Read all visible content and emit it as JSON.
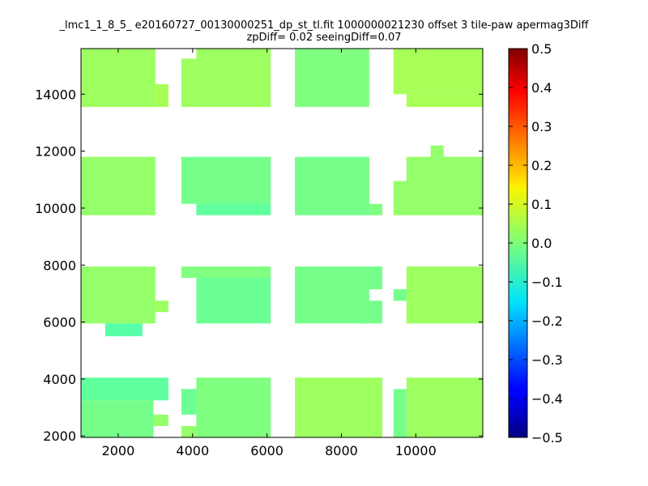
{
  "chart_data": {
    "type": "heatmap",
    "title": "_lmc1_1_8_5_ e20160727_00130000251_dp_st_tl.fit 1000000021230 offset 3 tile-paw apermag3Diff",
    "subtitle": "zpDiff= 0.02 seeingDiff=0.07",
    "xlabel": "",
    "ylabel": "",
    "xlim": [
      1000,
      11800
    ],
    "ylim": [
      1950,
      15600
    ],
    "xticks": [
      2000,
      4000,
      6000,
      8000,
      10000
    ],
    "yticks": [
      2000,
      4000,
      6000,
      8000,
      10000,
      12000,
      14000
    ],
    "grid": false,
    "colormap": "jet",
    "colorbar": {
      "vmin": -0.5,
      "vmax": 0.5,
      "ticks": [
        "0.5",
        "0.4",
        "0.3",
        "0.2",
        "0.1",
        "0.0",
        "−0.1",
        "−0.2",
        "−0.3",
        "−0.4",
        "−0.5"
      ]
    },
    "patches": [
      {
        "x": [
          1000,
          3000
        ],
        "y": [
          13550,
          15600
        ],
        "value": 0.03
      },
      {
        "x": [
          3000,
          3350
        ],
        "y": [
          13550,
          14350
        ],
        "value": 0.04
      },
      {
        "x": [
          3700,
          6100
        ],
        "y": [
          13550,
          15250
        ],
        "value": 0.03
      },
      {
        "x": [
          4100,
          6100
        ],
        "y": [
          15250,
          15600
        ],
        "value": 0.03
      },
      {
        "x": [
          6750,
          8750
        ],
        "y": [
          13550,
          15600
        ],
        "value": 0.0
      },
      {
        "x": [
          9400,
          11800
        ],
        "y": [
          14000,
          15600
        ],
        "value": 0.04
      },
      {
        "x": [
          9750,
          11800
        ],
        "y": [
          13550,
          14000
        ],
        "value": 0.04
      },
      {
        "x": [
          1000,
          3000
        ],
        "y": [
          9750,
          11800
        ],
        "value": 0.02
      },
      {
        "x": [
          3700,
          6100
        ],
        "y": [
          10150,
          11800
        ],
        "value": -0.01
      },
      {
        "x": [
          4100,
          6100
        ],
        "y": [
          9750,
          10150
        ],
        "value": -0.03
      },
      {
        "x": [
          6750,
          8750
        ],
        "y": [
          9750,
          11800
        ],
        "value": -0.01
      },
      {
        "x": [
          8750,
          9100
        ],
        "y": [
          9750,
          10150
        ],
        "value": 0.0
      },
      {
        "x": [
          9400,
          11800
        ],
        "y": [
          9750,
          10950
        ],
        "value": 0.02
      },
      {
        "x": [
          9750,
          11800
        ],
        "y": [
          10950,
          11800
        ],
        "value": 0.02
      },
      {
        "x": [
          10400,
          10750
        ],
        "y": [
          11800,
          12200
        ],
        "value": 0.02
      },
      {
        "x": [
          1000,
          3000
        ],
        "y": [
          5950,
          7950
        ],
        "value": 0.02
      },
      {
        "x": [
          3000,
          3350
        ],
        "y": [
          6350,
          6750
        ],
        "value": 0.03
      },
      {
        "x": [
          1650,
          2650
        ],
        "y": [
          5500,
          5950
        ],
        "value": -0.04
      },
      {
        "x": [
          3700,
          6100
        ],
        "y": [
          7550,
          7950
        ],
        "value": 0.0
      },
      {
        "x": [
          4100,
          6100
        ],
        "y": [
          5950,
          7550
        ],
        "value": -0.02
      },
      {
        "x": [
          6750,
          8750
        ],
        "y": [
          5950,
          7950
        ],
        "value": -0.01
      },
      {
        "x": [
          8750,
          9100
        ],
        "y": [
          7150,
          7950
        ],
        "value": -0.01
      },
      {
        "x": [
          8450,
          9100
        ],
        "y": [
          5950,
          6750
        ],
        "value": -0.01
      },
      {
        "x": [
          9750,
          11800
        ],
        "y": [
          5950,
          7950
        ],
        "value": 0.03
      },
      {
        "x": [
          9400,
          9750
        ],
        "y": [
          6750,
          7150
        ],
        "value": -0.01
      },
      {
        "x": [
          1000,
          3350
        ],
        "y": [
          3250,
          4050
        ],
        "value": -0.03
      },
      {
        "x": [
          1000,
          2950
        ],
        "y": [
          1950,
          3250
        ],
        "value": -0.01
      },
      {
        "x": [
          2950,
          3350
        ],
        "y": [
          2350,
          2750
        ],
        "value": 0.02
      },
      {
        "x": [
          4100,
          6100
        ],
        "y": [
          1950,
          4050
        ],
        "value": 0.0
      },
      {
        "x": [
          3700,
          4100
        ],
        "y": [
          2750,
          3650
        ],
        "value": -0.02
      },
      {
        "x": [
          3700,
          4100
        ],
        "y": [
          1950,
          2350
        ],
        "value": 0.02
      },
      {
        "x": [
          6750,
          9100
        ],
        "y": [
          1950,
          4050
        ],
        "value": 0.03
      },
      {
        "x": [
          9750,
          11800
        ],
        "y": [
          1950,
          4050
        ],
        "value": 0.03
      },
      {
        "x": [
          9400,
          9750
        ],
        "y": [
          1950,
          3650
        ],
        "value": -0.01
      }
    ]
  }
}
